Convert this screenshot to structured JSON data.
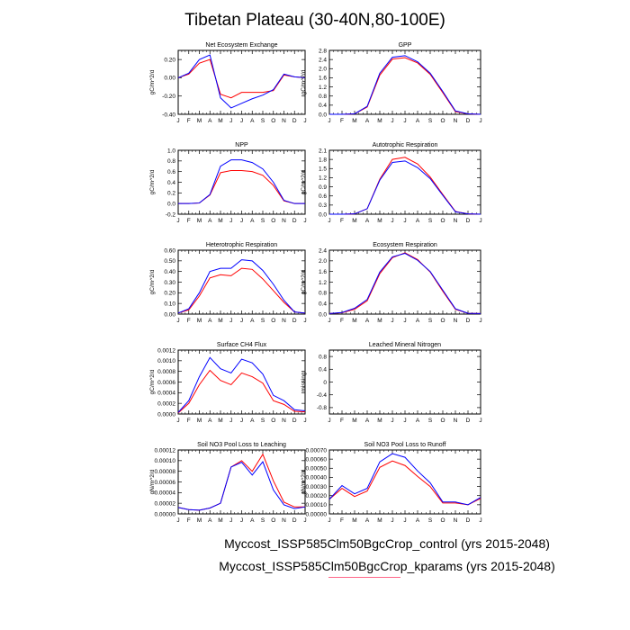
{
  "figure": {
    "title": "Tibetan Plateau (30-40N,80-100E)",
    "legend": [
      {
        "label": "Myccost_ISSP585Clm50BgcCrop_control (yrs 2015-2048)",
        "color": "#0000ff"
      },
      {
        "label": "Myccost_ISSP585Clm50BgcCrop_kparams (yrs 2015-2048)",
        "color": "#ff0000"
      }
    ]
  },
  "chart_data": [
    {
      "type": "line",
      "title": "Net Ecosystem Exchange",
      "ylabel": "gC/m^2/d",
      "categories": [
        "J",
        "F",
        "M",
        "A",
        "M",
        "J",
        "J",
        "A",
        "S",
        "O",
        "N",
        "D",
        "J"
      ],
      "ylim": [
        -0.4,
        0.3
      ],
      "yticks": [
        0.2,
        0.0,
        -0.2,
        -0.4
      ],
      "ytick_labels": [
        "0.20",
        "0.00",
        "-0.20",
        "-0.40"
      ],
      "series": [
        {
          "color": "#0000ff",
          "values": [
            0.0,
            0.05,
            0.2,
            0.25,
            -0.22,
            -0.33,
            -0.28,
            -0.23,
            -0.19,
            -0.13,
            0.04,
            0.01,
            0.0
          ]
        },
        {
          "color": "#ff0000",
          "values": [
            0.0,
            0.04,
            0.16,
            0.2,
            -0.18,
            -0.22,
            -0.16,
            -0.16,
            -0.16,
            -0.14,
            0.03,
            0.01,
            0.0
          ]
        }
      ]
    },
    {
      "type": "line",
      "title": "GPP",
      "ylabel": "gC/m^2/d",
      "categories": [
        "J",
        "F",
        "M",
        "A",
        "M",
        "J",
        "J",
        "A",
        "S",
        "O",
        "N",
        "D",
        "J"
      ],
      "ylim": [
        0,
        2.8
      ],
      "yticks": [
        0,
        0.4,
        0.8,
        1.2,
        1.6,
        2.0,
        2.4,
        2.8
      ],
      "ytick_labels": [
        "0.0",
        "0.4",
        "0.8",
        "1.2",
        "1.6",
        "2.0",
        "2.4",
        "2.8"
      ],
      "series": [
        {
          "color": "#0000ff",
          "values": [
            0.0,
            0.0,
            0.02,
            0.35,
            1.8,
            2.5,
            2.57,
            2.3,
            1.8,
            1.0,
            0.15,
            0.02,
            0.0
          ]
        },
        {
          "color": "#ff0000",
          "values": [
            0.0,
            0.0,
            0.02,
            0.32,
            1.72,
            2.42,
            2.48,
            2.25,
            1.75,
            0.95,
            0.12,
            0.02,
            0.0
          ]
        }
      ]
    },
    {
      "type": "line",
      "title": "NPP",
      "ylabel": "gC/m^2/d",
      "categories": [
        "J",
        "F",
        "M",
        "A",
        "M",
        "J",
        "J",
        "A",
        "S",
        "O",
        "N",
        "D",
        "J"
      ],
      "ylim": [
        -0.2,
        1.0
      ],
      "yticks": [
        -0.2,
        0,
        0.2,
        0.4,
        0.6,
        0.8,
        1.0
      ],
      "ytick_labels": [
        "-0.2",
        "0.0",
        "0.2",
        "0.4",
        "0.6",
        "0.8",
        "1.0"
      ],
      "series": [
        {
          "color": "#0000ff",
          "values": [
            0.0,
            0.0,
            0.01,
            0.17,
            0.7,
            0.82,
            0.82,
            0.77,
            0.65,
            0.4,
            0.06,
            0.0,
            0.0
          ]
        },
        {
          "color": "#ff0000",
          "values": [
            0.0,
            0.0,
            0.01,
            0.16,
            0.58,
            0.62,
            0.62,
            0.6,
            0.53,
            0.34,
            0.05,
            0.0,
            0.0
          ]
        }
      ]
    },
    {
      "type": "line",
      "title": "Autotrophic Respiration",
      "ylabel": "gC/m^2/d",
      "categories": [
        "J",
        "F",
        "M",
        "A",
        "M",
        "J",
        "J",
        "A",
        "S",
        "O",
        "N",
        "D",
        "J"
      ],
      "ylim": [
        0,
        2.1
      ],
      "yticks": [
        0,
        0.3,
        0.6,
        0.9,
        1.2,
        1.5,
        1.8,
        2.1
      ],
      "ytick_labels": [
        "0.0",
        "0.3",
        "0.6",
        "0.9",
        "1.2",
        "1.5",
        "1.8",
        "2.1"
      ],
      "series": [
        {
          "color": "#0000ff",
          "values": [
            0.0,
            0.0,
            0.01,
            0.18,
            1.12,
            1.7,
            1.75,
            1.53,
            1.17,
            0.62,
            0.08,
            0.01,
            0.0
          ]
        },
        {
          "color": "#ff0000",
          "values": [
            0.0,
            0.0,
            0.01,
            0.18,
            1.15,
            1.8,
            1.87,
            1.65,
            1.22,
            0.65,
            0.09,
            0.01,
            0.0
          ]
        }
      ]
    },
    {
      "type": "line",
      "title": "Heterotrophic Respiration",
      "ylabel": "gC/m^2/d",
      "categories": [
        "J",
        "F",
        "M",
        "A",
        "M",
        "J",
        "J",
        "A",
        "S",
        "O",
        "N",
        "D",
        "J"
      ],
      "ylim": [
        0,
        0.6
      ],
      "yticks": [
        0,
        0.1,
        0.2,
        0.3,
        0.4,
        0.5,
        0.6
      ],
      "ytick_labels": [
        "0.00",
        "0.10",
        "0.20",
        "0.30",
        "0.40",
        "0.50",
        "0.60"
      ],
      "series": [
        {
          "color": "#0000ff",
          "values": [
            0.01,
            0.05,
            0.2,
            0.4,
            0.43,
            0.43,
            0.51,
            0.5,
            0.41,
            0.28,
            0.13,
            0.02,
            0.01
          ]
        },
        {
          "color": "#ff0000",
          "values": [
            0.01,
            0.04,
            0.17,
            0.34,
            0.37,
            0.36,
            0.43,
            0.42,
            0.33,
            0.22,
            0.11,
            0.02,
            0.01
          ]
        }
      ]
    },
    {
      "type": "line",
      "title": "Ecosystem Respiration",
      "ylabel": "gC/m^2/d",
      "categories": [
        "J",
        "F",
        "M",
        "A",
        "M",
        "J",
        "J",
        "A",
        "S",
        "O",
        "N",
        "D",
        "J"
      ],
      "ylim": [
        0,
        2.4
      ],
      "yticks": [
        0,
        0.4,
        0.8,
        1.2,
        1.6,
        2.0,
        2.4
      ],
      "ytick_labels": [
        "0.0",
        "0.4",
        "0.8",
        "1.2",
        "1.6",
        "2.0",
        "2.4"
      ],
      "series": [
        {
          "color": "#0000ff",
          "values": [
            0.02,
            0.06,
            0.22,
            0.55,
            1.58,
            2.15,
            2.28,
            2.02,
            1.6,
            0.9,
            0.2,
            0.03,
            0.02
          ]
        },
        {
          "color": "#ff0000",
          "values": [
            0.02,
            0.05,
            0.18,
            0.5,
            1.52,
            2.12,
            2.3,
            2.05,
            1.58,
            0.86,
            0.18,
            0.03,
            0.02
          ]
        }
      ]
    },
    {
      "type": "line",
      "title": "Surface CH4 Flux",
      "ylabel": "gC/m^2/d",
      "categories": [
        "J",
        "F",
        "M",
        "A",
        "M",
        "J",
        "J",
        "A",
        "S",
        "O",
        "N",
        "D",
        "J"
      ],
      "ylim": [
        0,
        0.0012
      ],
      "yticks": [
        0,
        0.0002,
        0.0004,
        0.0006,
        0.0008,
        0.001,
        0.0012
      ],
      "ytick_labels": [
        "0.0000",
        "0.0002",
        "0.0004",
        "0.0006",
        "0.0008",
        "0.0010",
        "0.0012"
      ],
      "series": [
        {
          "color": "#0000ff",
          "values": [
            3e-05,
            0.00025,
            0.0007,
            0.00106,
            0.00085,
            0.00077,
            0.00103,
            0.00096,
            0.00075,
            0.00035,
            0.00025,
            8e-05,
            6e-05
          ]
        },
        {
          "color": "#ff0000",
          "values": [
            2e-05,
            0.0002,
            0.00055,
            0.00082,
            0.00063,
            0.00055,
            0.00077,
            0.0007,
            0.00058,
            0.00025,
            0.00018,
            5e-05,
            4e-05
          ]
        }
      ]
    },
    {
      "type": "line",
      "title": "Leached Mineral Nitrogen",
      "ylabel": "missing",
      "categories": [
        "J",
        "F",
        "M",
        "A",
        "M",
        "J",
        "J",
        "A",
        "S",
        "O",
        "N",
        "D",
        "J"
      ],
      "ylim": [
        -1.0,
        1.0
      ],
      "yticks": [
        -0.8,
        -0.4,
        0,
        0.4,
        0.8
      ],
      "ytick_labels": [
        "-0.8",
        "-0.4",
        "0",
        "0.4",
        "0.8"
      ],
      "series": []
    },
    {
      "type": "line",
      "title": "Soil NO3 Pool Loss to Leaching",
      "ylabel": "gN/m^2/d",
      "categories": [
        "J",
        "F",
        "M",
        "A",
        "M",
        "J",
        "J",
        "A",
        "S",
        "O",
        "N",
        "D",
        "J"
      ],
      "ylim": [
        0,
        0.00012
      ],
      "yticks": [
        0,
        2e-05,
        4e-05,
        6e-05,
        8e-05,
        0.0001,
        0.00012
      ],
      "ytick_labels": [
        "0.00000",
        "0.00002",
        "0.00004",
        "0.00006",
        "0.00008",
        "0.00010",
        "0.00012"
      ],
      "series": [
        {
          "color": "#0000ff",
          "values": [
            1.2e-05,
            8e-06,
            7e-06,
            1.1e-05,
            2e-05,
            8.8e-05,
            9.7e-05,
            7.3e-05,
            9.8e-05,
            4.5e-05,
            1.7e-05,
            1e-05,
            1.3e-05
          ]
        },
        {
          "color": "#ff0000",
          "values": [
            1.2e-05,
            8e-06,
            7e-06,
            1.1e-05,
            2e-05,
            8.8e-05,
            0.0001,
            8e-05,
            0.000112,
            6.2e-05,
            2.2e-05,
            1.3e-05,
            1.3e-05
          ]
        }
      ]
    },
    {
      "type": "line",
      "title": "Soil NO3 Pool Loss to Runoff",
      "ylabel": "gN/m^2/d",
      "categories": [
        "J",
        "F",
        "M",
        "A",
        "M",
        "J",
        "J",
        "A",
        "S",
        "O",
        "N",
        "D",
        "J"
      ],
      "ylim": [
        0,
        0.0007
      ],
      "yticks": [
        0,
        0.0001,
        0.0002,
        0.0003,
        0.0004,
        0.0005,
        0.0006,
        0.0007
      ],
      "ytick_labels": [
        "0.00000",
        "0.00010",
        "0.00020",
        "0.00030",
        "0.00040",
        "0.00050",
        "0.00060",
        "0.00070"
      ],
      "series": [
        {
          "color": "#0000ff",
          "values": [
            0.00016,
            0.00031,
            0.00022,
            0.00028,
            0.00057,
            0.00066,
            0.00062,
            0.00047,
            0.00034,
            0.00013,
            0.00013,
            0.0001,
            0.00018
          ]
        },
        {
          "color": "#ff0000",
          "values": [
            0.00016,
            0.00028,
            0.00019,
            0.00025,
            0.00051,
            0.00058,
            0.00053,
            0.00041,
            0.0003,
            0.00012,
            0.00012,
            0.0001,
            0.00017
          ]
        }
      ]
    }
  ]
}
